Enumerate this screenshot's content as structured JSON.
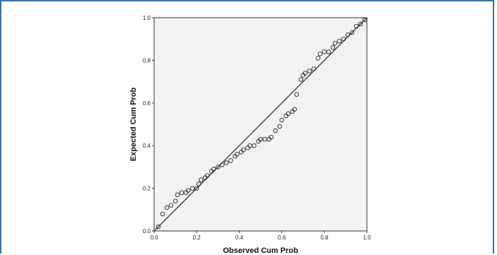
{
  "chart_data": {
    "type": "scatter",
    "title": "",
    "xlabel": "Observed Cum Prob",
    "ylabel": "Expected Cum Prob",
    "xlim": [
      0,
      1
    ],
    "ylim": [
      0,
      1
    ],
    "x_ticks": [
      "0.0",
      "0.2",
      "0.4",
      "0.6",
      "0.8",
      "1.0"
    ],
    "y_ticks": [
      "0.0",
      "0.2",
      "0.4",
      "0.6",
      "0.8",
      "1.0"
    ],
    "grid": false,
    "legend": "none",
    "reference_line": {
      "from": [
        0,
        0
      ],
      "to": [
        1,
        1
      ]
    },
    "colors": {
      "plot_background": "#f3f3f1",
      "points": "#222222",
      "frame_border": "#3f6ea5"
    },
    "series": [
      {
        "points": [
          [
            0.02,
            0.02
          ],
          [
            0.04,
            0.08
          ],
          [
            0.06,
            0.11
          ],
          [
            0.08,
            0.12
          ],
          [
            0.1,
            0.14
          ],
          [
            0.11,
            0.17
          ],
          [
            0.13,
            0.18
          ],
          [
            0.15,
            0.18
          ],
          [
            0.16,
            0.19
          ],
          [
            0.18,
            0.2
          ],
          [
            0.2,
            0.2
          ],
          [
            0.21,
            0.22
          ],
          [
            0.22,
            0.24
          ],
          [
            0.24,
            0.25
          ],
          [
            0.25,
            0.26
          ],
          [
            0.27,
            0.28
          ],
          [
            0.28,
            0.29
          ],
          [
            0.3,
            0.3
          ],
          [
            0.32,
            0.31
          ],
          [
            0.34,
            0.32
          ],
          [
            0.36,
            0.33
          ],
          [
            0.38,
            0.35
          ],
          [
            0.39,
            0.36
          ],
          [
            0.41,
            0.37
          ],
          [
            0.42,
            0.38
          ],
          [
            0.44,
            0.39
          ],
          [
            0.45,
            0.4
          ],
          [
            0.47,
            0.4
          ],
          [
            0.49,
            0.42
          ],
          [
            0.5,
            0.43
          ],
          [
            0.52,
            0.43
          ],
          [
            0.54,
            0.43
          ],
          [
            0.55,
            0.44
          ],
          [
            0.57,
            0.47
          ],
          [
            0.59,
            0.49
          ],
          [
            0.6,
            0.52
          ],
          [
            0.62,
            0.54
          ],
          [
            0.63,
            0.55
          ],
          [
            0.65,
            0.56
          ],
          [
            0.66,
            0.57
          ],
          [
            0.67,
            0.64
          ],
          [
            0.69,
            0.71
          ],
          [
            0.7,
            0.73
          ],
          [
            0.71,
            0.74
          ],
          [
            0.73,
            0.75
          ],
          [
            0.75,
            0.76
          ],
          [
            0.77,
            0.81
          ],
          [
            0.78,
            0.83
          ],
          [
            0.8,
            0.84
          ],
          [
            0.82,
            0.84
          ],
          [
            0.84,
            0.86
          ],
          [
            0.85,
            0.88
          ],
          [
            0.87,
            0.89
          ],
          [
            0.89,
            0.9
          ],
          [
            0.91,
            0.92
          ],
          [
            0.93,
            0.93
          ],
          [
            0.95,
            0.96
          ],
          [
            0.97,
            0.97
          ],
          [
            0.99,
            0.99
          ]
        ]
      }
    ]
  }
}
